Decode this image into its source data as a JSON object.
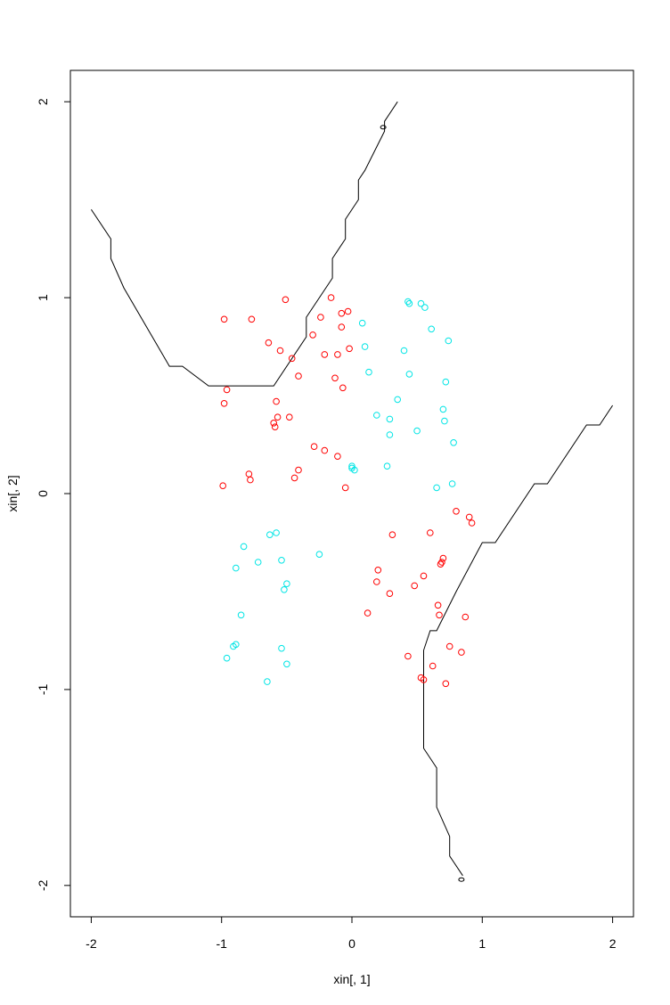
{
  "chart_data": {
    "type": "scatter",
    "title": "",
    "xlabel": "xin[, 1]",
    "ylabel": "xin[, 2]",
    "xlim": [
      -2.16,
      2.16
    ],
    "ylim": [
      -2.16,
      2.16
    ],
    "x_ticks": [
      -2,
      -1,
      0,
      1,
      2
    ],
    "y_ticks": [
      -2,
      -1,
      0,
      1,
      2
    ],
    "x_tick_labels": [
      "-2",
      "-1",
      "0",
      "1",
      "2"
    ],
    "y_tick_labels": [
      "-2",
      "-1",
      "0",
      "1",
      "2"
    ],
    "grid": false,
    "colors": {
      "red": "#ff0000",
      "cyan": "#00e5e5",
      "axis": "#000000"
    },
    "series": [
      {
        "color": "#ff0000",
        "points": [
          [
            -0.98,
            0.89
          ],
          [
            -0.77,
            0.89
          ],
          [
            -0.51,
            0.99
          ],
          [
            -0.16,
            1.0
          ],
          [
            -0.24,
            0.9
          ],
          [
            -0.03,
            0.93
          ],
          [
            -0.08,
            0.92
          ],
          [
            -0.08,
            0.85
          ],
          [
            -0.64,
            0.77
          ],
          [
            -0.55,
            0.73
          ],
          [
            -0.46,
            0.69
          ],
          [
            -0.3,
            0.81
          ],
          [
            -0.21,
            0.71
          ],
          [
            -0.11,
            0.71
          ],
          [
            -0.02,
            0.74
          ],
          [
            -0.41,
            0.6
          ],
          [
            -0.13,
            0.59
          ],
          [
            -0.07,
            0.54
          ],
          [
            -0.96,
            0.53
          ],
          [
            -0.98,
            0.46
          ],
          [
            -0.58,
            0.47
          ],
          [
            -0.57,
            0.39
          ],
          [
            -0.48,
            0.39
          ],
          [
            -0.6,
            0.36
          ],
          [
            -0.59,
            0.34
          ],
          [
            -0.29,
            0.24
          ],
          [
            -0.21,
            0.22
          ],
          [
            -0.11,
            0.19
          ],
          [
            -0.41,
            0.12
          ],
          [
            -0.79,
            0.1
          ],
          [
            -0.78,
            0.07
          ],
          [
            -0.44,
            0.08
          ],
          [
            -0.99,
            0.04
          ],
          [
            -0.05,
            0.03
          ],
          [
            0.8,
            -0.09
          ],
          [
            0.9,
            -0.12
          ],
          [
            0.92,
            -0.15
          ],
          [
            0.31,
            -0.21
          ],
          [
            0.6,
            -0.2
          ],
          [
            0.7,
            -0.33
          ],
          [
            0.69,
            -0.35
          ],
          [
            0.68,
            -0.36
          ],
          [
            0.2,
            -0.39
          ],
          [
            0.55,
            -0.42
          ],
          [
            0.19,
            -0.45
          ],
          [
            0.48,
            -0.47
          ],
          [
            0.29,
            -0.51
          ],
          [
            0.66,
            -0.57
          ],
          [
            0.67,
            -0.62
          ],
          [
            0.12,
            -0.61
          ],
          [
            0.87,
            -0.63
          ],
          [
            0.75,
            -0.78
          ],
          [
            0.84,
            -0.81
          ],
          [
            0.43,
            -0.83
          ],
          [
            0.62,
            -0.88
          ],
          [
            0.53,
            -0.94
          ],
          [
            0.55,
            -0.95
          ],
          [
            0.72,
            -0.97
          ]
        ]
      },
      {
        "color": "#00e5e5",
        "points": [
          [
            0.43,
            0.98
          ],
          [
            0.44,
            0.97
          ],
          [
            0.53,
            0.97
          ],
          [
            0.56,
            0.95
          ],
          [
            0.08,
            0.87
          ],
          [
            0.61,
            0.84
          ],
          [
            0.74,
            0.78
          ],
          [
            0.1,
            0.75
          ],
          [
            0.4,
            0.73
          ],
          [
            0.13,
            0.62
          ],
          [
            0.44,
            0.61
          ],
          [
            0.72,
            0.57
          ],
          [
            0.35,
            0.48
          ],
          [
            0.7,
            0.43
          ],
          [
            0.19,
            0.4
          ],
          [
            0.29,
            0.38
          ],
          [
            0.71,
            0.37
          ],
          [
            0.5,
            0.32
          ],
          [
            0.29,
            0.3
          ],
          [
            0.78,
            0.26
          ],
          [
            0.27,
            0.14
          ],
          [
            0.0,
            0.14
          ],
          [
            0.0,
            0.13
          ],
          [
            0.02,
            0.12
          ],
          [
            0.77,
            0.05
          ],
          [
            0.65,
            0.03
          ],
          [
            -0.58,
            -0.2
          ],
          [
            -0.63,
            -0.21
          ],
          [
            -0.83,
            -0.27
          ],
          [
            -0.25,
            -0.31
          ],
          [
            -0.54,
            -0.34
          ],
          [
            -0.72,
            -0.35
          ],
          [
            -0.89,
            -0.38
          ],
          [
            -0.5,
            -0.46
          ],
          [
            -0.52,
            -0.49
          ],
          [
            -0.85,
            -0.62
          ],
          [
            -0.89,
            -0.77
          ],
          [
            -0.91,
            -0.78
          ],
          [
            -0.54,
            -0.79
          ],
          [
            -0.96,
            -0.84
          ],
          [
            -0.5,
            -0.87
          ],
          [
            -0.65,
            -0.96
          ]
        ]
      }
    ],
    "boundaries": [
      {
        "color": "#000000",
        "points": [
          [
            -2.0,
            1.45
          ],
          [
            -1.85,
            1.3
          ],
          [
            -1.85,
            1.2
          ],
          [
            -1.75,
            1.05
          ],
          [
            -1.4,
            0.65
          ],
          [
            -1.3,
            0.65
          ],
          [
            -1.1,
            0.55
          ],
          [
            -0.6,
            0.55
          ],
          [
            -0.35,
            0.8
          ],
          [
            -0.35,
            0.9
          ],
          [
            -0.15,
            1.1
          ],
          [
            -0.15,
            1.2
          ],
          [
            -0.05,
            1.3
          ],
          [
            -0.05,
            1.4
          ],
          [
            0.05,
            1.5
          ],
          [
            0.05,
            1.6
          ],
          [
            0.1,
            1.65
          ],
          [
            0.25,
            1.85
          ],
          [
            0.25,
            1.9
          ],
          [
            0.35,
            2.0
          ]
        ],
        "end_marker": [
          0.24,
          1.87
        ]
      },
      {
        "color": "#000000",
        "points": [
          [
            2.0,
            0.45
          ],
          [
            1.9,
            0.35
          ],
          [
            1.8,
            0.35
          ],
          [
            1.5,
            0.05
          ],
          [
            1.4,
            0.05
          ],
          [
            1.1,
            -0.25
          ],
          [
            1.0,
            -0.25
          ],
          [
            0.8,
            -0.5
          ],
          [
            0.65,
            -0.7
          ],
          [
            0.6,
            -0.7
          ],
          [
            0.55,
            -0.8
          ],
          [
            0.55,
            -1.3
          ],
          [
            0.65,
            -1.4
          ],
          [
            0.65,
            -1.6
          ],
          [
            0.75,
            -1.75
          ],
          [
            0.75,
            -1.85
          ],
          [
            0.85,
            -1.95
          ]
        ],
        "end_marker": [
          0.84,
          -1.97
        ]
      }
    ]
  }
}
